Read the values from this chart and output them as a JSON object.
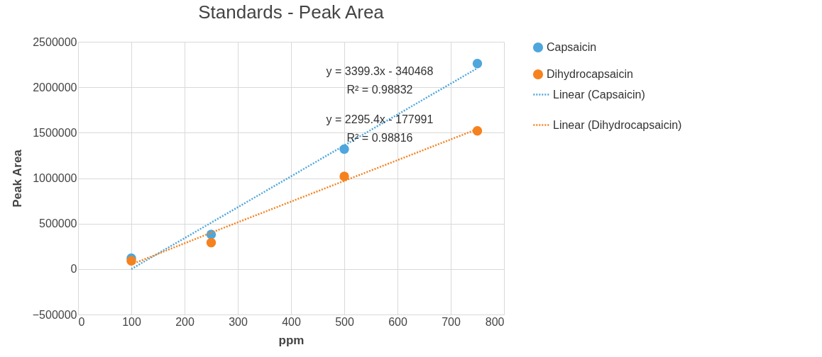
{
  "chart_data": {
    "type": "scatter",
    "title": "Standards - Peak Area",
    "xlabel": "ppm",
    "ylabel": "Peak Area",
    "x": [
      100,
      250,
      500,
      750
    ],
    "series": [
      {
        "name": "Capsaicin",
        "color": "#4ea6dc",
        "values": [
          120000,
          380000,
          1320000,
          2260000
        ],
        "marker": "circle"
      },
      {
        "name": "Dihydrocapsaicin",
        "color": "#f5821f",
        "values": [
          90000,
          290000,
          1020000,
          1520000
        ],
        "marker": "circle"
      },
      {
        "name": "Linear (Capsaicin)",
        "type": "line",
        "color": "#4ea6dc",
        "values": [
          0,
          510000,
          1360000,
          2210000
        ],
        "line_style": "dotted",
        "marker": "none"
      },
      {
        "name": "Linear (Dihydrocapsaicin)",
        "type": "line",
        "color": "#f5821f",
        "values": [
          50000,
          400000,
          970000,
          1540000
        ],
        "line_style": "dotted",
        "marker": "none"
      }
    ],
    "annotations": [
      "y = 3399.3x - 340468",
      "R² = 0.98832",
      "y = 2295.4x - 177991",
      "R² = 0.98816"
    ],
    "xlim": [
      0,
      800
    ],
    "xticks": [
      0,
      100,
      200,
      300,
      400,
      500,
      600,
      700,
      800
    ],
    "ylim": [
      -500000,
      2500000
    ],
    "yticks": [
      -500000,
      0,
      500000,
      1000000,
      1500000,
      2000000,
      2500000
    ],
    "grid": true,
    "legend": "right"
  }
}
